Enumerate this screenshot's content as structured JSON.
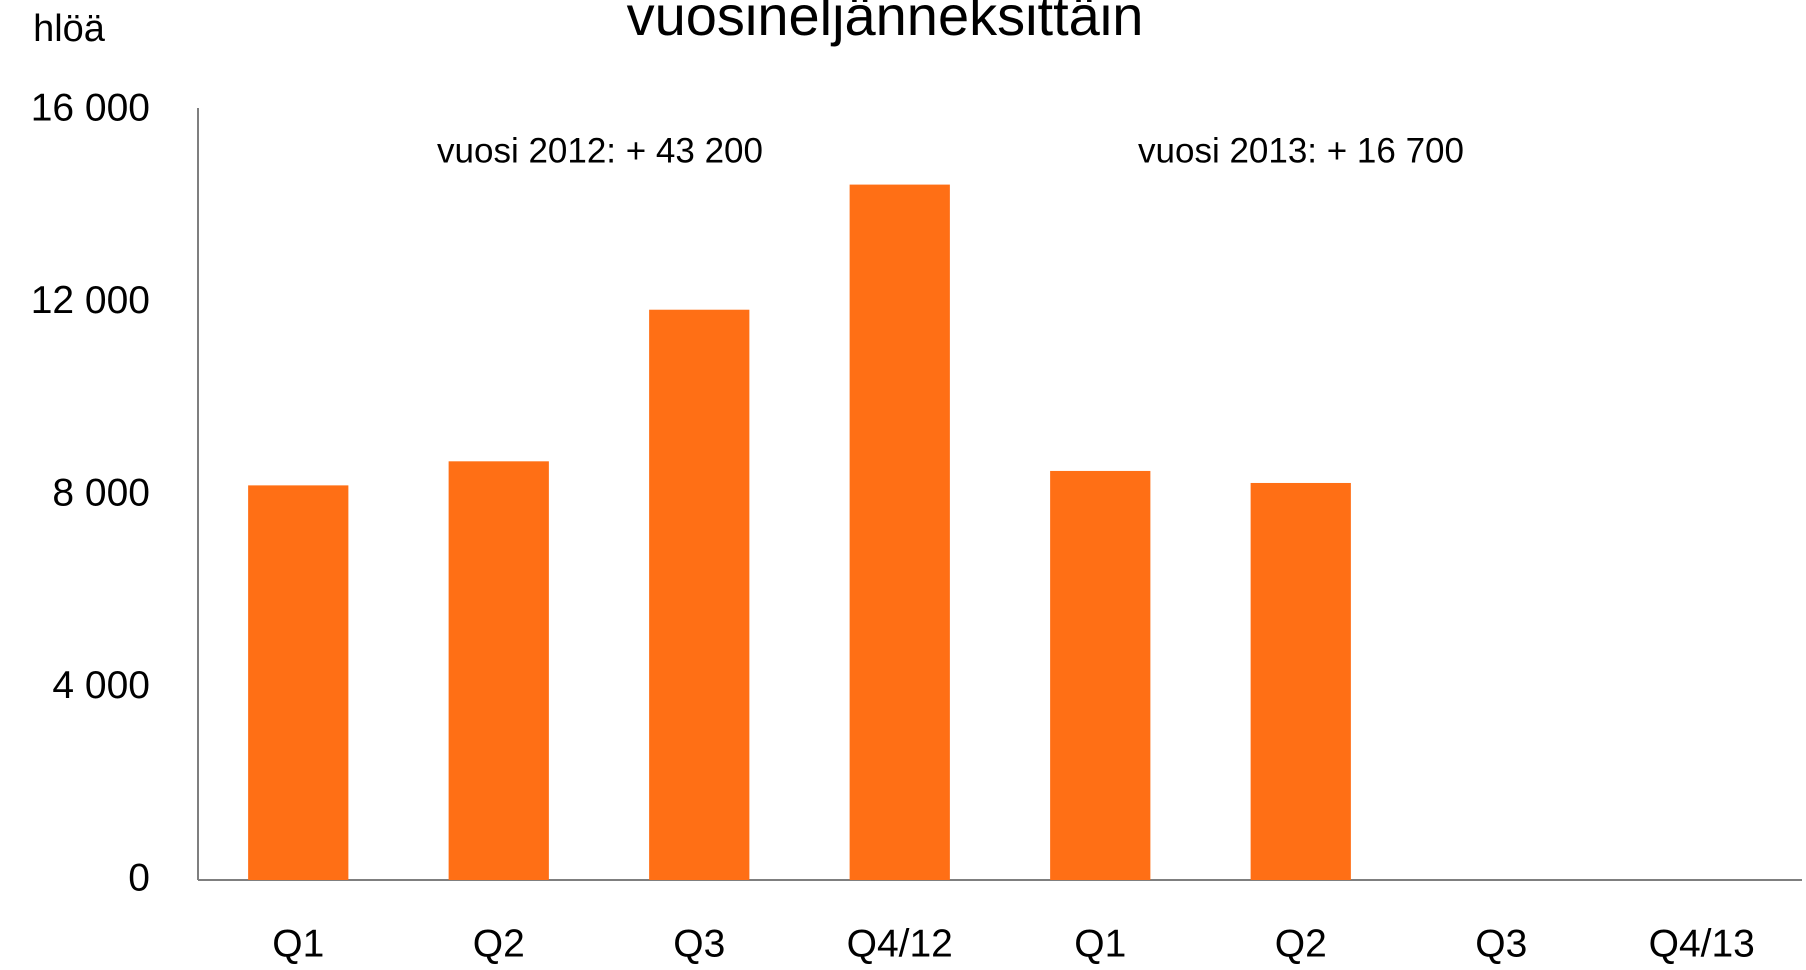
{
  "chart_data": {
    "type": "bar",
    "title": "vuosineljänneksittäin",
    "y_label": "hlöä",
    "annotations": [
      "vuosi 2012: + 43 200",
      "vuosi 2013: + 16 700"
    ],
    "categories": [
      "Q1",
      "Q2",
      "Q3",
      "Q4/12",
      "Q1",
      "Q2",
      "Q3",
      "Q4/13"
    ],
    "values": [
      8200,
      8700,
      11850,
      14450,
      8500,
      8250,
      null,
      null
    ],
    "color": "#ff6f15",
    "ylim": [
      0,
      16000
    ],
    "yticks": [
      0,
      {
        "value": 4000,
        "label": "4 000"
      },
      {
        "value": 8000,
        "label": "8 000"
      },
      {
        "value": 12000,
        "label": "12 000"
      },
      {
        "value": 16000,
        "label": "16 000"
      }
    ],
    "grid": false
  }
}
